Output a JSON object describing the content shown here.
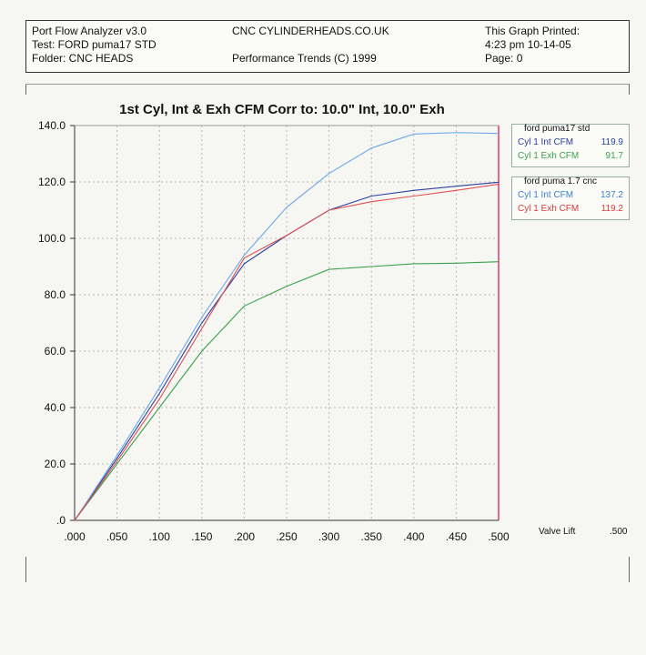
{
  "header": {
    "left": [
      "Port Flow Analyzer v3.0",
      "Test: FORD puma17 STD",
      "Folder: CNC HEADS"
    ],
    "center_top": "CNC CYLINDERHEADS.CO.UK",
    "center_bottom": "Performance Trends (C) 1999",
    "right": [
      "This Graph Printed:",
      "4:23 pm 10-14-05",
      "Page: 0"
    ]
  },
  "chart_data": {
    "type": "line",
    "title": "1st Cyl, Int & Exh CFM   Corr to: 10.0\" Int, 10.0\" Exh",
    "xlabel": "Valve Lift",
    "xlabel_value": ".500",
    "ylabel": "",
    "x": [
      0.0,
      0.05,
      0.1,
      0.15,
      0.2,
      0.25,
      0.3,
      0.35,
      0.4,
      0.45,
      0.5
    ],
    "x_tick_labels": [
      ".000",
      ".050",
      ".100",
      ".150",
      ".200",
      ".250",
      ".300",
      ".350",
      ".400",
      ".450",
      ".500"
    ],
    "y_tick_labels": [
      ".0",
      "20.0",
      "40.0",
      "60.0",
      "80.0",
      "100.0",
      "120.0",
      "140.0"
    ],
    "xlim": [
      0,
      0.5
    ],
    "ylim": [
      0,
      140
    ],
    "grid": true,
    "series": [
      {
        "name": "Cyl 1 Int CFM",
        "group": "ford puma17 std",
        "color": "#2a3f9e",
        "values": [
          0,
          22,
          45,
          70,
          91,
          101,
          110,
          115,
          117,
          118.5,
          119.9
        ]
      },
      {
        "name": "Cyl 1 Exh CFM",
        "group": "ford puma17 std",
        "color": "#3aa04a",
        "values": [
          0,
          20,
          40,
          60,
          76,
          83,
          89,
          90,
          91,
          91.2,
          91.7
        ]
      },
      {
        "name": "Cyl 1 Int CFM",
        "group": "ford puma 1.7 cnc",
        "color": "#6aa8e8",
        "values": [
          0,
          23,
          47,
          72,
          94,
          111,
          123,
          132,
          137,
          137.5,
          137.2
        ]
      },
      {
        "name": "Cyl 1 Exh CFM",
        "group": "ford puma 1.7 cnc",
        "color": "#e05050",
        "values": [
          0,
          21,
          43,
          68,
          93,
          101,
          110,
          113,
          115,
          117,
          119.2
        ]
      }
    ],
    "legend": {
      "placement": "right",
      "groups": [
        {
          "title": "ford puma17 std",
          "items": [
            {
              "label": "Cyl 1 Int CFM",
              "value": "119.9",
              "color": "#2a3f9e"
            },
            {
              "label": "Cyl 1 Exh CFM",
              "value": "91.7",
              "color": "#3aa04a"
            }
          ]
        },
        {
          "title": "ford puma 1.7 cnc",
          "items": [
            {
              "label": "Cyl 1 Int CFM",
              "value": "137.2",
              "color": "#3b7fd0"
            },
            {
              "label": "Cyl 1 Exh CFM",
              "value": "119.2",
              "color": "#d83a3a"
            }
          ]
        }
      ]
    },
    "vertical_marker_color": "#d83a7a"
  }
}
